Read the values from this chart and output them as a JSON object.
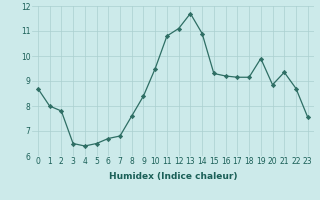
{
  "xlabel": "Humidex (Indice chaleur)",
  "ylabel": "",
  "x": [
    0,
    1,
    2,
    3,
    4,
    5,
    6,
    7,
    8,
    9,
    10,
    11,
    12,
    13,
    14,
    15,
    16,
    17,
    18,
    19,
    20,
    21,
    22,
    23
  ],
  "y": [
    8.7,
    8.0,
    7.8,
    6.5,
    6.4,
    6.5,
    6.7,
    6.8,
    7.6,
    8.4,
    9.5,
    10.8,
    11.1,
    11.7,
    10.9,
    9.3,
    9.2,
    9.15,
    9.15,
    9.9,
    8.85,
    9.35,
    8.7,
    7.55
  ],
  "line_color": "#2e6e64",
  "marker": "D",
  "marker_size": 2.2,
  "bg_color": "#cceaea",
  "grid_color": "#aacfcf",
  "ylim": [
    6,
    12
  ],
  "xlim": [
    -0.5,
    23.5
  ],
  "yticks": [
    6,
    7,
    8,
    9,
    10,
    11,
    12
  ],
  "xticks": [
    0,
    1,
    2,
    3,
    4,
    5,
    6,
    7,
    8,
    9,
    10,
    11,
    12,
    13,
    14,
    15,
    16,
    17,
    18,
    19,
    20,
    21,
    22,
    23
  ],
  "label_fontsize": 6.5,
  "tick_fontsize": 5.5
}
